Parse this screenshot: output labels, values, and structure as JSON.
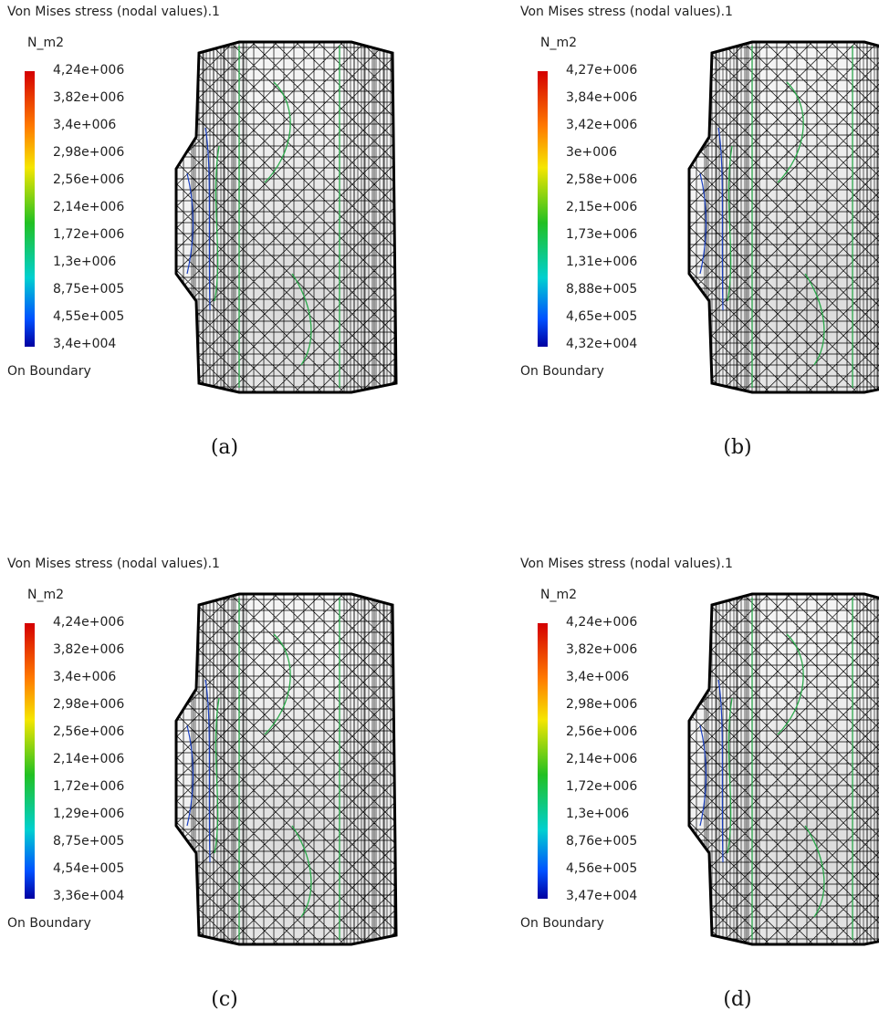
{
  "panels": [
    {
      "title": "Von Mises stress (nodal values).1",
      "unit": "N_m2",
      "labels": [
        "4,24e+006",
        "3,82e+006",
        "3,4e+006",
        "2,98e+006",
        "2,56e+006",
        "2,14e+006",
        "1,72e+006",
        "1,3e+006",
        "8,75e+005",
        "4,55e+005",
        "3,4e+004"
      ],
      "note": "On Boundary",
      "caption": "(a)"
    },
    {
      "title": "Von Mises stress (nodal values).1",
      "unit": "N_m2",
      "labels": [
        "4,27e+006",
        "3,84e+006",
        "3,42e+006",
        "3e+006",
        "2,58e+006",
        "2,15e+006",
        "1,73e+006",
        "1,31e+006",
        "8,88e+005",
        "4,65e+005",
        "4,32e+004"
      ],
      "note": "On Boundary",
      "caption": "(b)"
    },
    {
      "title": "Von Mises stress (nodal values).1",
      "unit": "N_m2",
      "labels": [
        "4,24e+006",
        "3,82e+006",
        "3,4e+006",
        "2,98e+006",
        "2,56e+006",
        "2,14e+006",
        "1,72e+006",
        "1,29e+006",
        "8,75e+005",
        "4,54e+005",
        "3,36e+004"
      ],
      "note": "On Boundary",
      "caption": "(c)"
    },
    {
      "title": "Von Mises stress (nodal values).1",
      "unit": "N_m2",
      "labels": [
        "4,24e+006",
        "3,82e+006",
        "3,4e+006",
        "2,98e+006",
        "2,56e+006",
        "2,14e+006",
        "1,72e+006",
        "1,3e+006",
        "8,76e+005",
        "4,56e+005",
        "3,47e+004"
      ],
      "note": "On Boundary",
      "caption": "(d)"
    }
  ]
}
